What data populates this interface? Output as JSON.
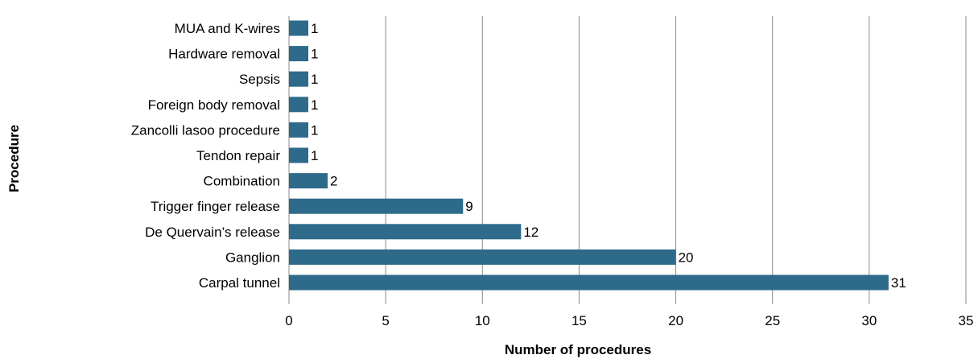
{
  "chart_data": {
    "type": "bar",
    "orientation": "horizontal",
    "categories": [
      "MUA and K-wires",
      "Hardware removal",
      "Sepsis",
      "Foreign body removal",
      "Zancolli lasoo procedure",
      "Tendon repair",
      "Combination",
      "Trigger finger release",
      "De Quervain’s release",
      "Ganglion",
      "Carpal tunnel"
    ],
    "values": [
      1,
      1,
      1,
      1,
      1,
      1,
      2,
      9,
      12,
      20,
      31
    ],
    "xlabel": "Number of procedures",
    "ylabel": "Procedure",
    "xlim": [
      0,
      35
    ],
    "xticks": [
      0,
      5,
      10,
      15,
      20,
      25,
      30,
      35
    ],
    "grid": "vertical",
    "legend": "none",
    "data_labels": true,
    "bar_color": "#2e6a8a",
    "grid_color": "#8c8c8c"
  }
}
